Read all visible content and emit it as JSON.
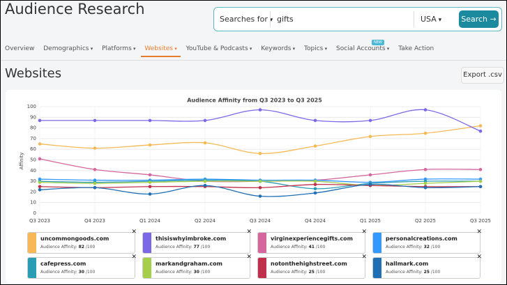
{
  "header": {
    "title": "Audience Research"
  },
  "search": {
    "mode": "Searches for",
    "query": "gifts",
    "country": "USA",
    "button": "Search"
  },
  "nav": {
    "items": [
      "Overview",
      "Demographics",
      "Platforms",
      "Websites",
      "YouTube & Podcasts",
      "Keywords",
      "Topics",
      "Social Accounts",
      "Take Action"
    ],
    "badge": "NEW"
  },
  "section": {
    "title": "Websites",
    "export": "Export .csv"
  },
  "cards": {
    "label": "Audience Affinity:",
    "suffix": "/100"
  },
  "chart_data": {
    "type": "line",
    "title": "Audience Affinity from Q3 2023 to Q3 2025",
    "y_label": "Affinity",
    "categories": [
      "Q3 2023",
      "Q4 2023",
      "Q1 2024",
      "Q2 2024",
      "Q3 2024",
      "Q4 2024",
      "Q1 2025",
      "Q2 2025",
      "Q3 2025"
    ],
    "ylim": [
      0,
      100
    ],
    "yticks": [
      0,
      10,
      20,
      30,
      40,
      50,
      60,
      70,
      80,
      90,
      100
    ],
    "grid": true,
    "series": [
      {
        "name": "uncommongoods.com",
        "color": "#f7b955",
        "values": [
          65,
          61,
          64,
          66,
          56,
          63,
          72,
          75,
          82
        ]
      },
      {
        "name": "thisiswhyimbroke.com",
        "color": "#7b68e6",
        "values": [
          87,
          87,
          87,
          87,
          97,
          87,
          87,
          97,
          77
        ]
      },
      {
        "name": "virginexperiencegifts.com",
        "color": "#d4679c",
        "values": [
          51,
          41,
          36,
          30,
          30,
          31,
          36,
          41,
          41
        ]
      },
      {
        "name": "personalcreations.com",
        "color": "#3399ff",
        "values": [
          32,
          31,
          31,
          32,
          31,
          31,
          29,
          32,
          32
        ]
      },
      {
        "name": "cafepress.com",
        "color": "#2a9db5",
        "values": [
          30,
          29,
          30,
          31,
          30,
          23,
          28,
          30,
          30
        ]
      },
      {
        "name": "markandgraham.com",
        "color": "#a3cf4a",
        "values": [
          29,
          28,
          29,
          30,
          30,
          30,
          26,
          28,
          30
        ]
      },
      {
        "name": "notonthehighstreet.com",
        "color": "#c0304a",
        "values": [
          25,
          24,
          25,
          25,
          24,
          27,
          26,
          25,
          25
        ]
      },
      {
        "name": "hallmark.com",
        "color": "#1f6fb4",
        "values": [
          22,
          24,
          18,
          26,
          16,
          19,
          27,
          24,
          25
        ]
      }
    ]
  }
}
